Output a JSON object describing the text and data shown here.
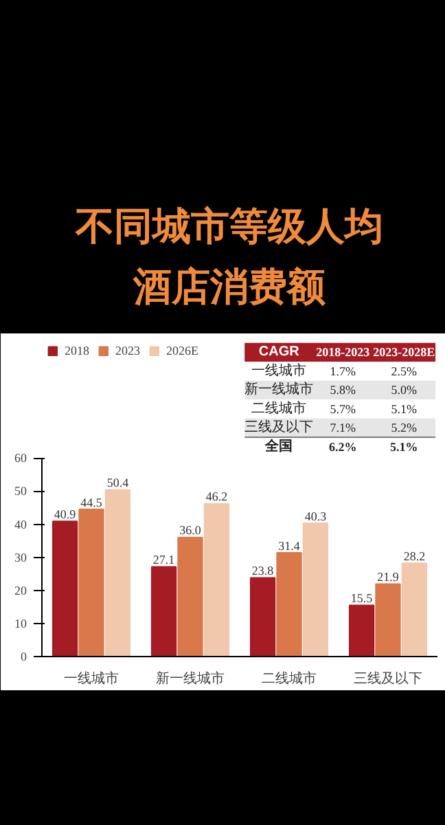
{
  "chart_data": {
    "type": "bar",
    "title": "不同城市等级人均酒店消费额",
    "categories": [
      "一线城市",
      "新一线城市",
      "二线城市",
      "三线及以下"
    ],
    "series": [
      {
        "name": "2018",
        "color": "#a51c24",
        "values": [
          40.9,
          27.1,
          23.8,
          15.5
        ]
      },
      {
        "name": "2023",
        "color": "#d9784a",
        "values": [
          44.5,
          36.0,
          31.4,
          21.9
        ],
        "value_labels": [
          "44.5",
          "36.0",
          "31.4",
          "21.9"
        ]
      },
      {
        "name": "2026E",
        "color": "#f2c8ad",
        "values": [
          50.4,
          46.2,
          40.3,
          28.2
        ]
      }
    ],
    "ylim": [
      0,
      60
    ],
    "yticks": [
      0,
      10,
      20,
      30,
      40,
      50,
      60
    ],
    "data_labels": true,
    "legend": "top left",
    "grid": false,
    "annotations": [
      "CAGR",
      "2018-2023",
      "2023-2028E",
      "一线城市",
      "1.7%",
      "2.5%",
      "新一线城市",
      "5.8%",
      "5.0%",
      "二线城市",
      "5.7%",
      "5.1%",
      "三线及以下",
      "7.1%",
      "5.2%",
      "全国",
      "6.2%",
      "5.1%"
    ]
  }
}
